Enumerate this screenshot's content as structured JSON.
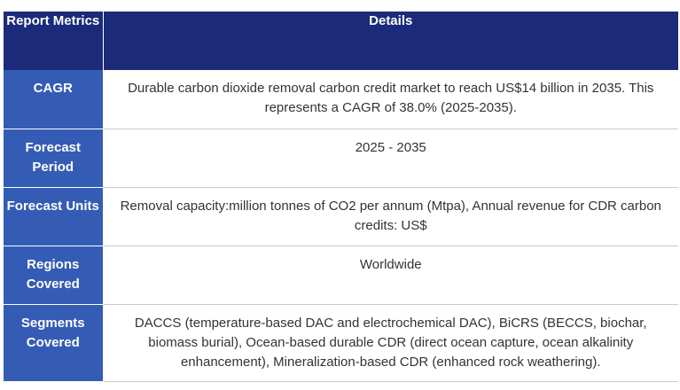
{
  "header": {
    "metric_label": "Report Metrics",
    "detail_label": "Details"
  },
  "rows": [
    {
      "metric": "CAGR",
      "detail": "Durable carbon dioxide removal carbon credit market to reach US$14 billion in 2035. This represents a CAGR of 38.0% (2025-2035)."
    },
    {
      "metric": "Forecast Period",
      "detail": "2025 - 2035"
    },
    {
      "metric": "Forecast Units",
      "detail": "Removal capacity:million tonnes of CO2 per annum (Mtpa), Annual revenue for CDR carbon credits: US$"
    },
    {
      "metric": "Regions Covered",
      "detail": "Worldwide"
    },
    {
      "metric": "Segments Covered",
      "detail": "DACCS (temperature-based DAC and electrochemical DAC), BiCRS (BECCS, biochar, biomass burial), Ocean-based durable CDR (direct ocean capture, ocean alkalinity enhancement), Mineralization-based CDR (enhanced rock weathering)."
    }
  ],
  "colors": {
    "header_bg": "#1c2a7a",
    "metric_bg": "#355cb5",
    "detail_text": "#333333"
  }
}
